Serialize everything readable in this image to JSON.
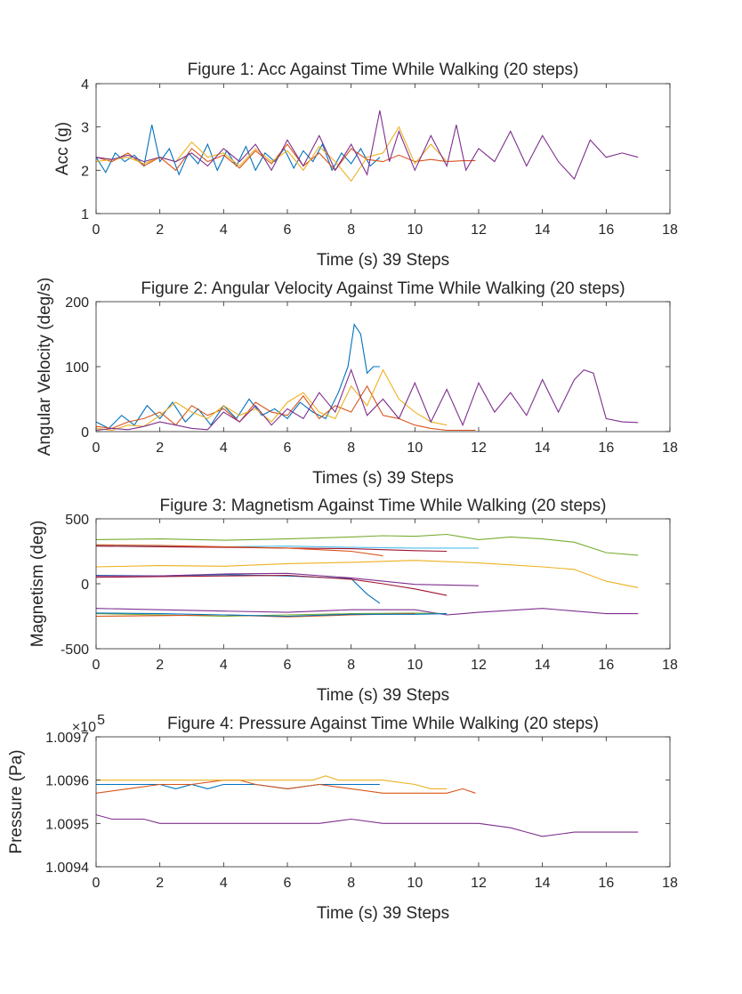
{
  "chart_data": [
    {
      "type": "line",
      "title": "Figure 1: Acc Against Time While Walking (20 steps)",
      "xlabel": "Time (s) 39 Steps",
      "ylabel": "Acc (g)",
      "xlim": [
        0,
        18
      ],
      "ylim": [
        1,
        4
      ],
      "xticks": [
        "0",
        "2",
        "4",
        "6",
        "8",
        "10",
        "12",
        "14",
        "16",
        "18"
      ],
      "yticks": [
        "1",
        "2",
        "3",
        "4"
      ],
      "series": [
        {
          "color": "#0072BD",
          "x": [
            0,
            0.3,
            0.6,
            0.9,
            1.2,
            1.5,
            1.75,
            2.0,
            2.3,
            2.6,
            2.9,
            3.2,
            3.5,
            3.8,
            4.1,
            4.4,
            4.7,
            5.0,
            5.3,
            5.6,
            5.9,
            6.2,
            6.5,
            6.8,
            7.1,
            7.4,
            7.7,
            8.0,
            8.3,
            8.6,
            8.9
          ],
          "y": [
            2.3,
            1.95,
            2.4,
            2.2,
            2.35,
            2.1,
            3.05,
            2.2,
            2.5,
            1.9,
            2.4,
            2.15,
            2.6,
            2.0,
            2.45,
            2.1,
            2.55,
            2.0,
            2.4,
            2.2,
            2.5,
            2.05,
            2.45,
            2.2,
            2.6,
            2.0,
            2.4,
            2.15,
            2.5,
            2.1,
            2.3
          ]
        },
        {
          "color": "#D95319",
          "x": [
            0,
            0.5,
            1,
            1.5,
            2,
            2.5,
            3,
            3.5,
            4,
            4.5,
            5,
            5.5,
            6,
            6.5,
            7,
            7.5,
            8,
            8.5,
            9,
            9.5,
            10,
            10.5,
            11,
            11.5,
            11.9
          ],
          "y": [
            2.3,
            2.2,
            2.4,
            2.1,
            2.3,
            2.0,
            2.5,
            2.2,
            2.35,
            2.05,
            2.45,
            2.15,
            2.6,
            2.1,
            2.4,
            2.0,
            2.5,
            2.25,
            2.2,
            2.35,
            2.2,
            2.25,
            2.2,
            2.22,
            2.22
          ]
        },
        {
          "color": "#EDB120",
          "x": [
            0,
            0.5,
            1,
            1.5,
            2,
            2.5,
            3,
            3.5,
            4,
            4.5,
            5,
            5.5,
            6,
            6.5,
            7,
            7.5,
            8,
            8.5,
            9,
            9.5,
            10,
            10.5,
            11
          ],
          "y": [
            2.2,
            2.25,
            2.3,
            2.15,
            2.3,
            2.2,
            2.65,
            2.3,
            2.4,
            2.1,
            2.5,
            2.2,
            2.45,
            2.0,
            2.55,
            2.2,
            1.75,
            2.3,
            2.4,
            3.0,
            2.15,
            2.6,
            2.2
          ]
        },
        {
          "color": "#7E2F8E",
          "x": [
            0,
            0.5,
            1,
            1.5,
            2,
            2.5,
            3,
            3.5,
            4,
            4.5,
            5,
            5.5,
            6,
            6.5,
            7,
            7.5,
            8,
            8.5,
            8.9,
            9.2,
            9.5,
            10,
            10.5,
            11,
            11.3,
            11.6,
            12,
            12.5,
            13,
            13.5,
            14,
            14.5,
            15,
            15.5,
            16,
            16.5,
            17
          ],
          "y": [
            2.3,
            2.25,
            2.35,
            2.2,
            2.3,
            2.2,
            2.4,
            2.1,
            2.5,
            2.2,
            2.6,
            2.0,
            2.7,
            2.1,
            2.8,
            2.0,
            2.6,
            1.9,
            3.38,
            2.2,
            2.9,
            2.0,
            2.8,
            2.1,
            3.05,
            2.0,
            2.5,
            2.2,
            2.9,
            2.1,
            2.8,
            2.2,
            1.8,
            2.7,
            2.3,
            2.4,
            2.3
          ]
        }
      ]
    },
    {
      "type": "line",
      "title": "Figure 2: Angular Velocity Against Time While Walking (20 steps)",
      "xlabel": "Times (s) 39 Steps",
      "ylabel": "Angular Velocity (deg/s)",
      "xlim": [
        0,
        18
      ],
      "ylim": [
        0,
        200
      ],
      "xticks": [
        "0",
        "2",
        "4",
        "6",
        "8",
        "10",
        "12",
        "14",
        "16",
        "18"
      ],
      "yticks": [
        "0",
        "100",
        "200"
      ],
      "series": [
        {
          "color": "#0072BD",
          "x": [
            0,
            0.4,
            0.8,
            1.2,
            1.6,
            2.0,
            2.4,
            2.8,
            3.2,
            3.6,
            4.0,
            4.4,
            4.8,
            5.2,
            5.6,
            6.0,
            6.4,
            6.8,
            7.2,
            7.6,
            7.9,
            8.1,
            8.3,
            8.5,
            8.7,
            8.9
          ],
          "y": [
            15,
            5,
            25,
            10,
            40,
            20,
            45,
            15,
            35,
            10,
            40,
            20,
            50,
            25,
            35,
            20,
            45,
            30,
            20,
            60,
            100,
            165,
            150,
            90,
            100,
            100
          ]
        },
        {
          "color": "#D95319",
          "x": [
            0,
            0.5,
            1,
            1.5,
            2,
            2.5,
            3,
            3.5,
            4,
            4.5,
            5,
            5.5,
            6,
            6.5,
            7,
            7.5,
            8,
            8.5,
            9,
            9.5,
            10,
            10.5,
            11,
            11.5,
            11.9
          ],
          "y": [
            8,
            5,
            15,
            20,
            30,
            10,
            40,
            25,
            35,
            15,
            45,
            30,
            25,
            55,
            20,
            40,
            30,
            70,
            25,
            20,
            10,
            5,
            2,
            2,
            2
          ]
        },
        {
          "color": "#EDB120",
          "x": [
            0,
            0.5,
            1,
            1.5,
            2,
            2.5,
            3,
            3.5,
            4,
            4.5,
            5,
            5.5,
            6,
            6.5,
            7,
            7.5,
            8,
            8.5,
            9,
            9.5,
            10,
            10.5,
            11
          ],
          "y": [
            5,
            2,
            10,
            8,
            25,
            45,
            30,
            20,
            40,
            25,
            35,
            15,
            45,
            60,
            30,
            20,
            70,
            40,
            95,
            50,
            30,
            15,
            10
          ]
        },
        {
          "color": "#7E2F8E",
          "x": [
            0,
            0.5,
            1,
            1.5,
            2,
            2.5,
            3,
            3.5,
            4,
            4.5,
            5,
            5.5,
            6,
            6.5,
            7,
            7.5,
            8,
            8.5,
            9,
            9.5,
            10,
            10.5,
            11,
            11.5,
            12,
            12.5,
            13,
            13.5,
            14,
            14.5,
            15,
            15.3,
            15.6,
            16,
            16.5,
            17
          ],
          "y": [
            2,
            5,
            3,
            8,
            15,
            10,
            5,
            3,
            30,
            15,
            40,
            10,
            35,
            20,
            60,
            30,
            95,
            25,
            50,
            20,
            75,
            15,
            65,
            10,
            75,
            30,
            60,
            25,
            80,
            30,
            80,
            95,
            90,
            20,
            15,
            14
          ]
        }
      ]
    },
    {
      "type": "line",
      "title": "Figure 3: Magnetism Against Time While Walking (20 steps)",
      "xlabel": "Time (s) 39 Steps",
      "ylabel": "Magnetism (deg)",
      "xlim": [
        0,
        18
      ],
      "ylim": [
        -500,
        500
      ],
      "xticks": [
        "0",
        "2",
        "4",
        "6",
        "8",
        "10",
        "12",
        "14",
        "16",
        "18"
      ],
      "yticks": [
        "-500",
        "0",
        "500"
      ],
      "series": [
        {
          "color": "#77AC30",
          "x": [
            0,
            2,
            4,
            6,
            8,
            9,
            10,
            11,
            12,
            13,
            14,
            15,
            16,
            17
          ],
          "y": [
            340,
            345,
            335,
            345,
            360,
            370,
            365,
            380,
            340,
            360,
            345,
            320,
            240,
            220
          ]
        },
        {
          "color": "#4DBEEE",
          "x": [
            0,
            2,
            4,
            6,
            8,
            10,
            12
          ],
          "y": [
            295,
            290,
            285,
            290,
            280,
            275,
            275
          ]
        },
        {
          "color": "#A2142F",
          "x": [
            0,
            2,
            4,
            6,
            8,
            10,
            11
          ],
          "y": [
            290,
            285,
            280,
            275,
            270,
            255,
            250
          ]
        },
        {
          "color": "#D95319",
          "x": [
            0,
            2,
            4,
            6,
            8,
            9
          ],
          "y": [
            300,
            295,
            285,
            275,
            250,
            215
          ]
        },
        {
          "color": "#EDB120",
          "x": [
            0,
            2,
            4,
            6,
            8,
            10,
            12,
            14,
            15,
            16,
            17
          ],
          "y": [
            130,
            140,
            135,
            155,
            165,
            180,
            160,
            130,
            110,
            20,
            -30
          ]
        },
        {
          "color": "#0072BD",
          "x": [
            0,
            2,
            4,
            6,
            8,
            8.5,
            8.9
          ],
          "y": [
            65,
            60,
            70,
            60,
            40,
            -80,
            -150
          ]
        },
        {
          "color": "#A2142F",
          "x": [
            0,
            2,
            4,
            6,
            8,
            9,
            10,
            11
          ],
          "y": [
            50,
            55,
            60,
            65,
            35,
            0,
            -40,
            -90
          ]
        },
        {
          "color": "#7E2F8E",
          "x": [
            0,
            2,
            4,
            6,
            8,
            10,
            12
          ],
          "y": [
            60,
            60,
            75,
            80,
            45,
            -5,
            -15
          ]
        },
        {
          "color": "#7E2F8E",
          "x": [
            0,
            2,
            4,
            6,
            8,
            10,
            11,
            12,
            14,
            16,
            17
          ],
          "y": [
            -190,
            -200,
            -210,
            -220,
            -200,
            -200,
            -240,
            -220,
            -190,
            -230,
            -230
          ]
        },
        {
          "color": "#77AC30",
          "x": [
            0,
            2,
            4,
            6,
            8,
            10,
            11
          ],
          "y": [
            -230,
            -240,
            -250,
            -240,
            -230,
            -225,
            -230
          ]
        },
        {
          "color": "#D95319",
          "x": [
            0,
            2,
            4,
            6,
            8,
            10
          ],
          "y": [
            -250,
            -245,
            -240,
            -255,
            -240,
            -230
          ]
        },
        {
          "color": "#0072BD",
          "x": [
            0,
            2,
            4,
            6,
            8,
            10,
            11
          ],
          "y": [
            -225,
            -230,
            -240,
            -250,
            -235,
            -235,
            -230
          ]
        }
      ]
    },
    {
      "type": "line",
      "title": "Figure 4: Pressure Against Time While Walking (20 steps)",
      "xlabel": "Time (s) 39 Steps",
      "ylabel": "Pressure (Pa)",
      "xlim": [
        0,
        18
      ],
      "ylim": [
        1.0094,
        1.0097
      ],
      "exponent_label": "×10",
      "exponent": "5",
      "xticks": [
        "0",
        "2",
        "4",
        "6",
        "8",
        "10",
        "12",
        "14",
        "16",
        "18"
      ],
      "yticks": [
        "1.0094",
        "1.0095",
        "1.0096",
        "1.0097"
      ],
      "series": [
        {
          "color": "#0072BD",
          "x": [
            0,
            1,
            2,
            2.5,
            3,
            3.5,
            4,
            5,
            6,
            7,
            8,
            8.9
          ],
          "y": [
            1.00959,
            1.00959,
            1.00959,
            1.00958,
            1.00959,
            1.00958,
            1.00959,
            1.00959,
            1.00958,
            1.00959,
            1.00959,
            1.00959
          ]
        },
        {
          "color": "#D95319",
          "x": [
            0,
            1,
            2,
            3,
            4,
            4.5,
            5,
            6,
            7,
            8,
            9,
            10,
            11,
            11.5,
            11.9
          ],
          "y": [
            1.00957,
            1.00958,
            1.00959,
            1.00959,
            1.0096,
            1.0096,
            1.00959,
            1.00958,
            1.00959,
            1.00958,
            1.00957,
            1.00957,
            1.00957,
            1.00958,
            1.00957
          ]
        },
        {
          "color": "#EDB120",
          "x": [
            0,
            1,
            2,
            3,
            4,
            5,
            6,
            6.8,
            7.2,
            7.6,
            8,
            9,
            10,
            10.5,
            11
          ],
          "y": [
            1.0096,
            1.0096,
            1.0096,
            1.0096,
            1.0096,
            1.0096,
            1.0096,
            1.0096,
            1.00961,
            1.0096,
            1.0096,
            1.0096,
            1.00959,
            1.00958,
            1.00958
          ]
        },
        {
          "color": "#7E2F8E",
          "x": [
            0,
            0.5,
            1,
            1.5,
            2,
            3,
            4,
            5,
            6,
            7,
            8,
            9,
            10,
            11,
            12,
            13,
            13.5,
            14,
            15,
            16,
            17
          ],
          "y": [
            1.00952,
            1.00951,
            1.00951,
            1.00951,
            1.0095,
            1.0095,
            1.0095,
            1.0095,
            1.0095,
            1.0095,
            1.00951,
            1.0095,
            1.0095,
            1.0095,
            1.0095,
            1.00949,
            1.00948,
            1.00947,
            1.00948,
            1.00948,
            1.00948
          ]
        }
      ]
    }
  ]
}
